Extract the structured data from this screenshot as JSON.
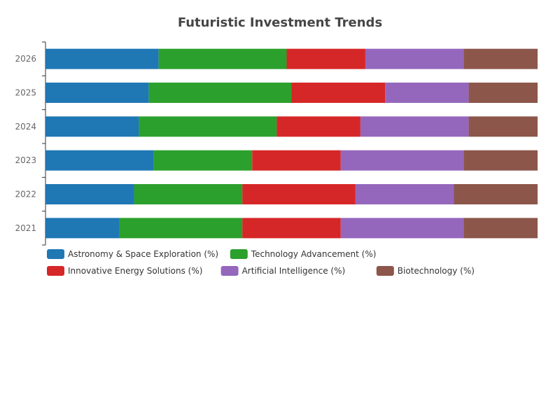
{
  "chart_data": {
    "type": "bar",
    "orientation": "horizontal",
    "stacked": "percent",
    "title": "Futuristic Investment Trends",
    "xlabel": "",
    "ylabel": "",
    "categories": [
      "2021",
      "2022",
      "2023",
      "2024",
      "2025",
      "2026"
    ],
    "series": [
      {
        "name": "Astronomy & Space Exploration (%)",
        "color": "#1f77b4",
        "values": [
          15,
          18,
          22,
          19,
          21,
          23
        ]
      },
      {
        "name": "Technology Advancement (%)",
        "color": "#2ca02c",
        "values": [
          25,
          22,
          20,
          28,
          29,
          26
        ]
      },
      {
        "name": "Innovative Energy Solutions (%)",
        "color": "#d62728",
        "values": [
          20,
          23,
          18,
          17,
          19,
          16
        ]
      },
      {
        "name": "Artificial Intelligence (%)",
        "color": "#9467bd",
        "values": [
          25,
          20,
          25,
          22,
          17,
          20
        ]
      },
      {
        "name": "Biotechnology (%)",
        "color": "#8c564b",
        "values": [
          15,
          17,
          15,
          14,
          14,
          15
        ]
      }
    ],
    "xlim": [
      0,
      100
    ],
    "grid": false,
    "legend_position": "bottom"
  }
}
